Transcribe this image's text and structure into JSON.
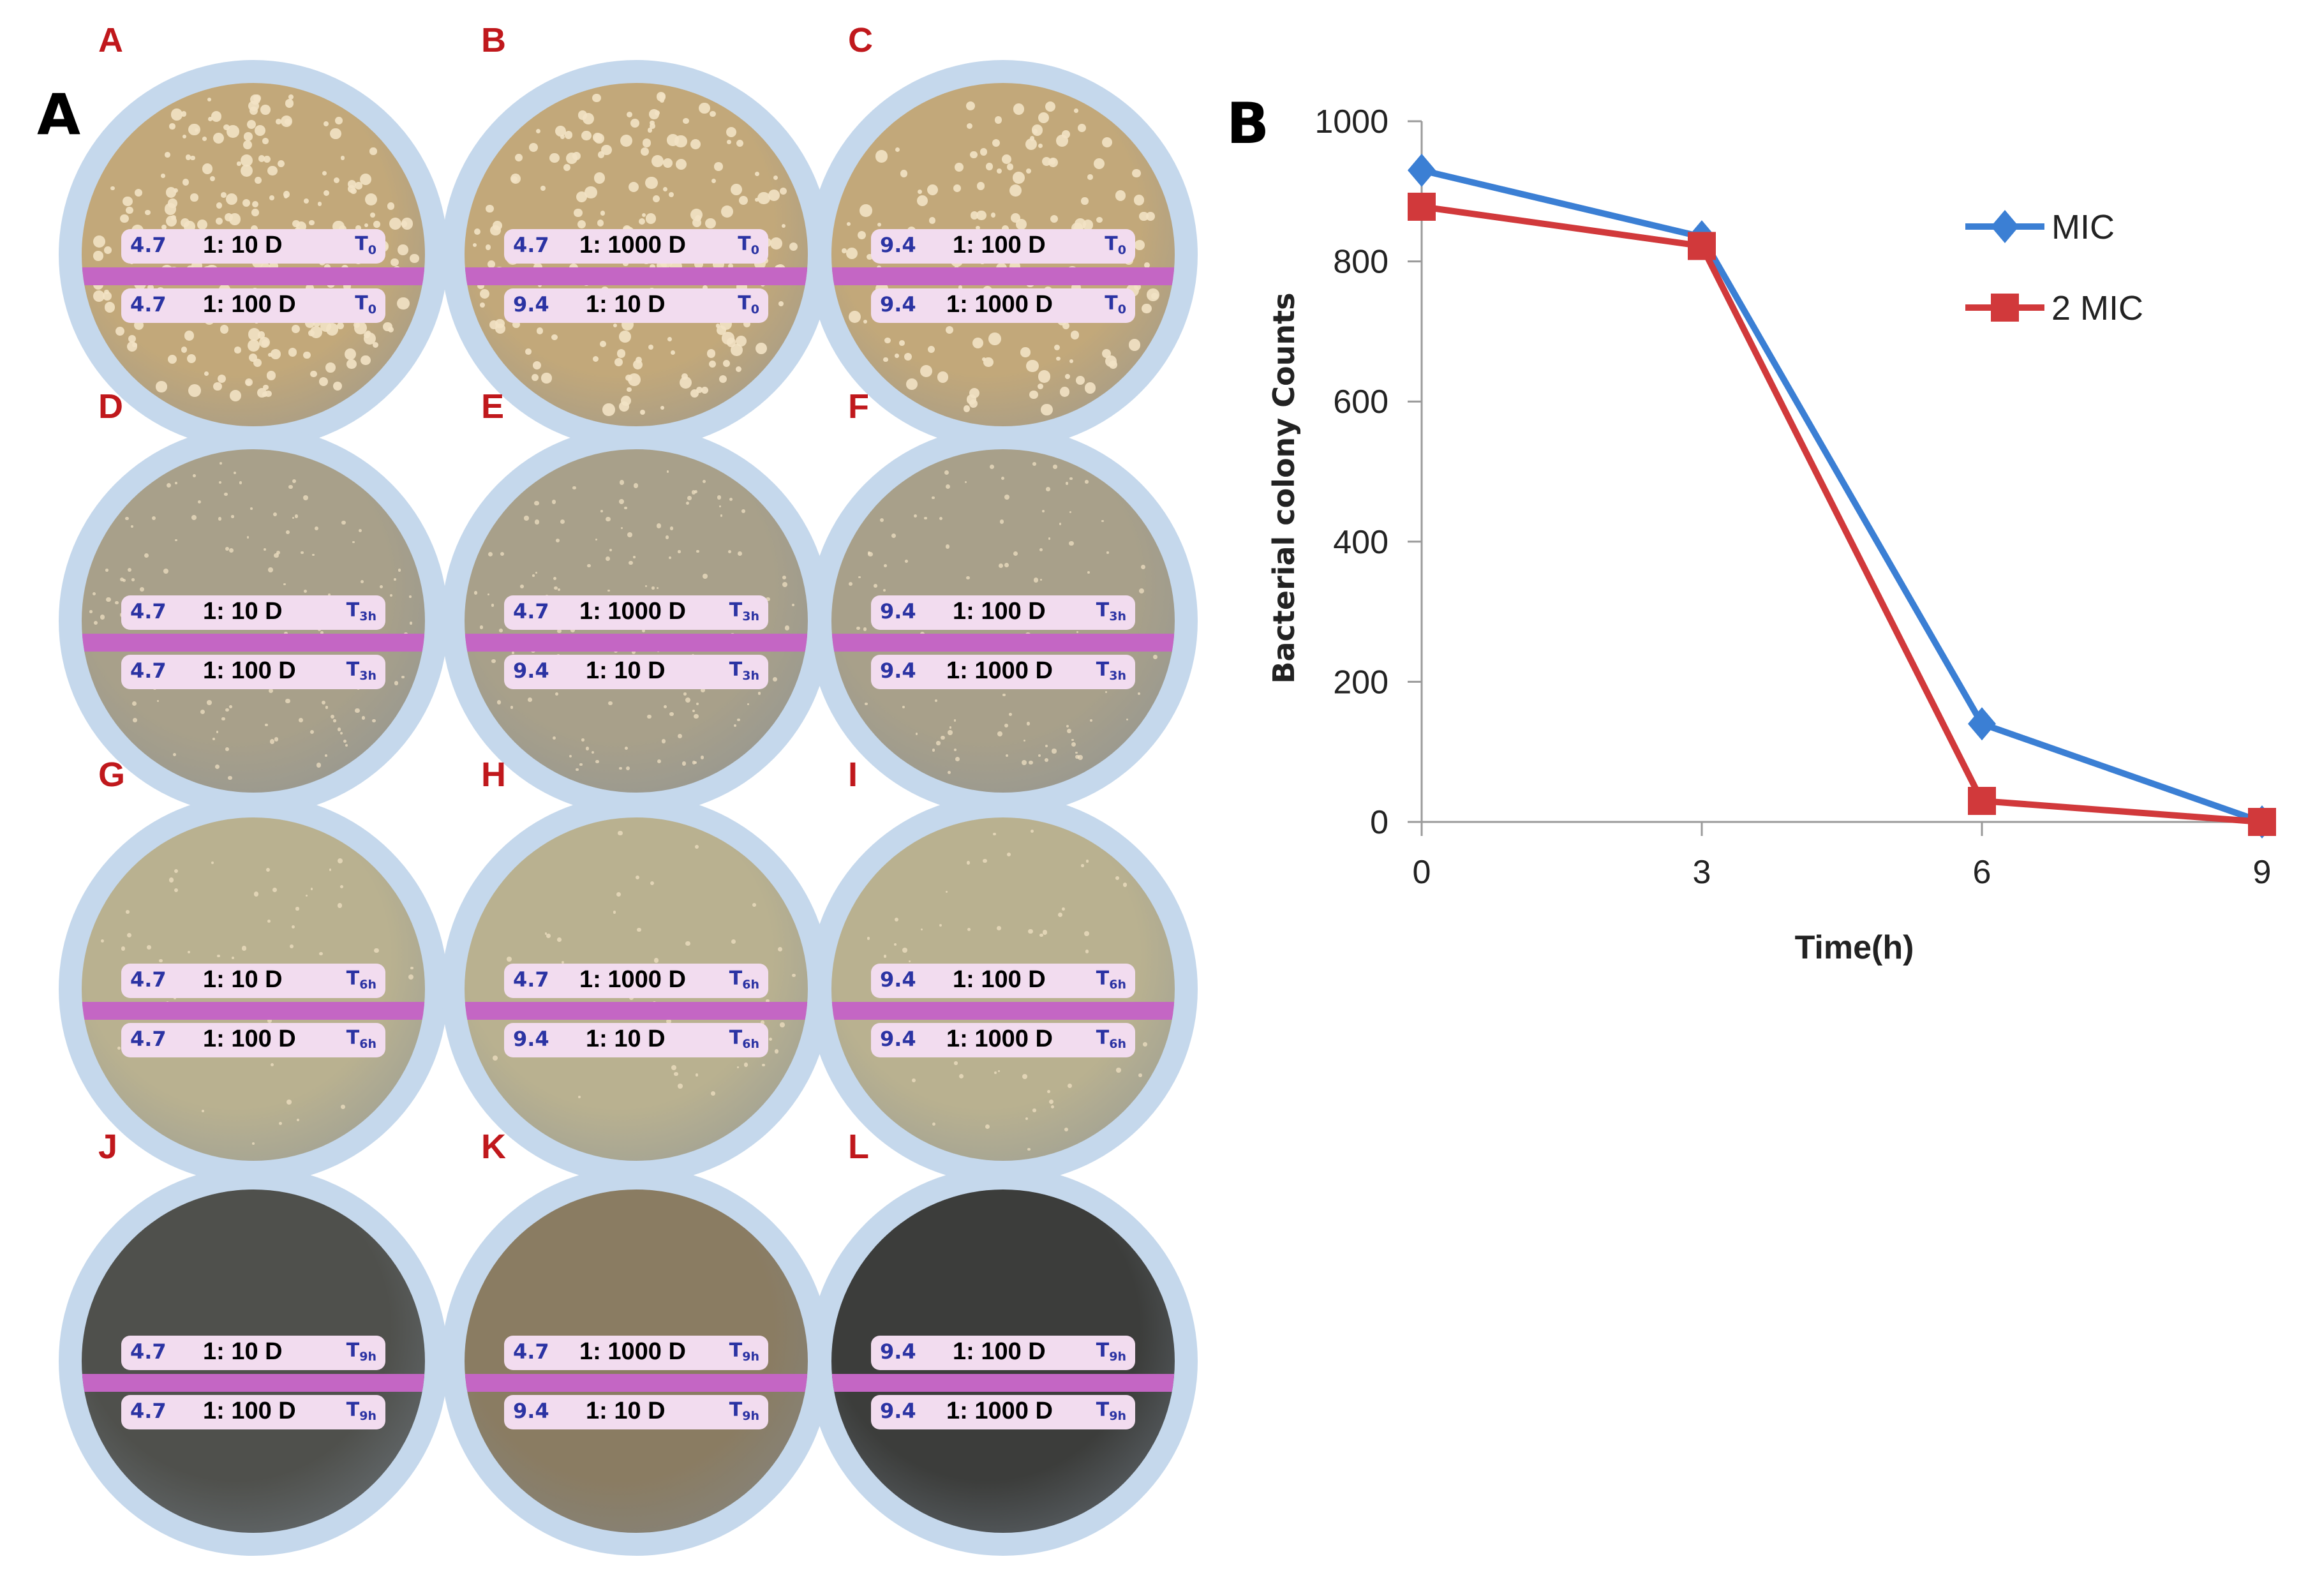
{
  "panel_labels": {
    "a": "A",
    "b": "B"
  },
  "plate_rows": [
    [
      {
        "letter": "A",
        "top": {
          "ph": "4.7",
          "dilution": "1: 10 D",
          "time": "T",
          "time_sub": "0"
        },
        "bottom": {
          "ph": "4.7",
          "dilution": "1: 100 D",
          "time": "T",
          "time_sub": "0"
        }
      },
      {
        "letter": "B",
        "top": {
          "ph": "4.7",
          "dilution": "1: 1000 D",
          "time": "T",
          "time_sub": "0"
        },
        "bottom": {
          "ph": "9.4",
          "dilution": "1: 10 D",
          "time": "T",
          "time_sub": "0"
        }
      },
      {
        "letter": "C",
        "top": {
          "ph": "9.4",
          "dilution": "1: 100 D",
          "time": "T",
          "time_sub": "0"
        },
        "bottom": {
          "ph": "9.4",
          "dilution": "1: 1000 D",
          "time": "T",
          "time_sub": "0"
        }
      }
    ],
    [
      {
        "letter": "D",
        "top": {
          "ph": "4.7",
          "dilution": "1: 10 D",
          "time": "T",
          "time_sub": "3h"
        },
        "bottom": {
          "ph": "4.7",
          "dilution": "1: 100 D",
          "time": "T",
          "time_sub": "3h"
        }
      },
      {
        "letter": "E",
        "top": {
          "ph": "4.7",
          "dilution": "1: 1000 D",
          "time": "T",
          "time_sub": "3h"
        },
        "bottom": {
          "ph": "9.4",
          "dilution": "1: 10 D",
          "time": "T",
          "time_sub": "3h"
        }
      },
      {
        "letter": "F",
        "top": {
          "ph": "9.4",
          "dilution": "1: 100 D",
          "time": "T",
          "time_sub": "3h"
        },
        "bottom": {
          "ph": "9.4",
          "dilution": "1: 1000 D",
          "time": "T",
          "time_sub": "3h"
        }
      }
    ],
    [
      {
        "letter": "G",
        "top": {
          "ph": "4.7",
          "dilution": "1: 10 D",
          "time": "T",
          "time_sub": "6h"
        },
        "bottom": {
          "ph": "4.7",
          "dilution": "1: 100 D",
          "time": "T",
          "time_sub": "6h"
        }
      },
      {
        "letter": "H",
        "top": {
          "ph": "4.7",
          "dilution": "1: 1000 D",
          "time": "T",
          "time_sub": "6h"
        },
        "bottom": {
          "ph": "9.4",
          "dilution": "1: 10 D",
          "time": "T",
          "time_sub": "6h"
        }
      },
      {
        "letter": "I",
        "top": {
          "ph": "9.4",
          "dilution": "1: 100 D",
          "time": "T",
          "time_sub": "6h"
        },
        "bottom": {
          "ph": "9.4",
          "dilution": "1: 1000 D",
          "time": "T",
          "time_sub": "6h"
        }
      }
    ],
    [
      {
        "letter": "J",
        "top": {
          "ph": "4.7",
          "dilution": "1: 10 D",
          "time": "T",
          "time_sub": "9h"
        },
        "bottom": {
          "ph": "4.7",
          "dilution": "1: 100 D",
          "time": "T",
          "time_sub": "9h"
        }
      },
      {
        "letter": "K",
        "top": {
          "ph": "4.7",
          "dilution": "1: 1000 D",
          "time": "T",
          "time_sub": "9h"
        },
        "bottom": {
          "ph": "9.4",
          "dilution": "1: 10 D",
          "time": "T",
          "time_sub": "9h"
        }
      },
      {
        "letter": "L",
        "top": {
          "ph": "9.4",
          "dilution": "1: 100 D",
          "time": "T",
          "time_sub": "9h"
        },
        "bottom": {
          "ph": "9.4",
          "dilution": "1: 1000 D",
          "time": "T",
          "time_sub": "9h"
        }
      }
    ]
  ],
  "colors": {
    "plate_rim": "#c5d8ec",
    "label_bg": "#f2dcef",
    "stripe": "#c466c4",
    "ph_text": "#2b33a3",
    "plate_letter": "#c0181c",
    "agar_rows": [
      "#c2a87a",
      "#a8a08a",
      "#b9b190",
      "#4f504c"
    ],
    "agar_overrides": {
      "K": "#8a7c62",
      "L": "#3c3d3b"
    },
    "colony": "#f2e2c4",
    "mic": "#3b7fd4",
    "mic2": "#d1393b"
  },
  "colony_counts": [
    [
      260,
      220,
      170
    ],
    [
      130,
      150,
      120
    ],
    [
      60,
      45,
      60
    ],
    [
      0,
      0,
      0
    ]
  ],
  "chart_data": {
    "type": "line",
    "title": "",
    "xlabel": "Time(h)",
    "ylabel": "Bacterial colony Counts",
    "x": [
      0,
      3,
      6,
      9
    ],
    "xticks": [
      "0",
      "3",
      "6",
      "9"
    ],
    "yticks": [
      "0",
      "200",
      "400",
      "600",
      "800",
      "1000"
    ],
    "ylim": [
      0,
      1000
    ],
    "xlim": [
      0,
      9
    ],
    "grid": false,
    "legend_position": "top-right",
    "series": [
      {
        "name": "MIC",
        "values": [
          930,
          835,
          140,
          0
        ],
        "color": "#3b7fd4",
        "marker": "diamond"
      },
      {
        "name": "2 MIC",
        "values": [
          878,
          822,
          30,
          0
        ],
        "color": "#d1393b",
        "marker": "square"
      }
    ]
  }
}
